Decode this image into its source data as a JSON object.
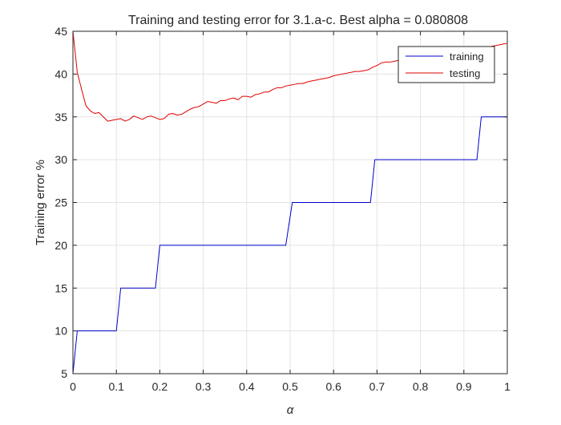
{
  "chart_data": {
    "type": "line",
    "title": "Training and testing error for 3.1.a-c. Best alpha = 0.080808",
    "xlabel": "α",
    "ylabel": "Training error %",
    "xlim": [
      0,
      1
    ],
    "ylim": [
      5,
      45
    ],
    "xticks": [
      "0",
      "0.1",
      "0.2",
      "0.3",
      "0.4",
      "0.5",
      "0.6",
      "0.7",
      "0.8",
      "0.9",
      "1"
    ],
    "yticks": [
      "5",
      "10",
      "15",
      "20",
      "25",
      "30",
      "35",
      "40",
      "45"
    ],
    "grid": true,
    "legend_position": "top-right",
    "series": [
      {
        "name": "training",
        "color": "#0000cc",
        "x": [
          0,
          0.01,
          0.01,
          0.1,
          0.11,
          0.19,
          0.2,
          0.49,
          0.505,
          0.685,
          0.695,
          0.93,
          0.94,
          1.0
        ],
        "y": [
          5,
          10,
          10,
          10,
          15,
          15,
          20,
          20,
          25,
          25,
          30,
          30,
          35,
          35
        ]
      },
      {
        "name": "testing",
        "color": "#e00000",
        "x": [
          0,
          0.01,
          0.02,
          0.03,
          0.04,
          0.05,
          0.06,
          0.07,
          0.08,
          0.09,
          0.1,
          0.11,
          0.12,
          0.13,
          0.14,
          0.15,
          0.16,
          0.17,
          0.18,
          0.19,
          0.2,
          0.21,
          0.22,
          0.23,
          0.24,
          0.25,
          0.26,
          0.27,
          0.28,
          0.29,
          0.3,
          0.31,
          0.32,
          0.33,
          0.34,
          0.35,
          0.36,
          0.37,
          0.38,
          0.39,
          0.4,
          0.41,
          0.42,
          0.43,
          0.44,
          0.45,
          0.46,
          0.47,
          0.48,
          0.49,
          0.5,
          0.51,
          0.52,
          0.53,
          0.54,
          0.55,
          0.56,
          0.57,
          0.58,
          0.59,
          0.6,
          0.61,
          0.62,
          0.63,
          0.64,
          0.65,
          0.66,
          0.67,
          0.68,
          0.69,
          0.7,
          0.71,
          0.72,
          0.73,
          0.74,
          0.75,
          0.76,
          0.77,
          0.78,
          0.79,
          0.8,
          0.81,
          0.82,
          0.83,
          0.84,
          0.85,
          0.86,
          0.87,
          0.88,
          0.89,
          0.9,
          0.91,
          0.92,
          0.93,
          0.94,
          0.95,
          0.96,
          0.97,
          0.98,
          0.99,
          1.0
        ],
        "y": [
          45,
          40.2,
          38.2,
          36.3,
          35.7,
          35.4,
          35.5,
          35.0,
          34.5,
          34.6,
          34.7,
          34.8,
          34.5,
          34.7,
          35.1,
          34.9,
          34.7,
          35.0,
          35.1,
          34.9,
          34.7,
          34.8,
          35.3,
          35.4,
          35.2,
          35.3,
          35.6,
          35.9,
          36.1,
          36.2,
          36.5,
          36.8,
          36.7,
          36.6,
          36.9,
          36.9,
          37.1,
          37.2,
          37.0,
          37.4,
          37.4,
          37.3,
          37.6,
          37.7,
          37.9,
          37.9,
          38.2,
          38.4,
          38.4,
          38.6,
          38.7,
          38.8,
          38.9,
          38.9,
          39.1,
          39.2,
          39.3,
          39.4,
          39.5,
          39.6,
          39.8,
          39.9,
          40.0,
          40.1,
          40.2,
          40.3,
          40.3,
          40.4,
          40.5,
          40.8,
          41.0,
          41.3,
          41.4,
          41.4,
          41.5,
          41.6,
          41.6,
          41.7,
          41.8,
          41.9,
          41.9,
          42.0,
          42.1,
          42.2,
          42.2,
          42.3,
          42.4,
          42.5,
          42.6,
          42.7,
          42.8,
          42.8,
          42.9,
          43.0,
          43.1,
          43.2,
          43.2,
          43.3,
          43.4,
          43.5,
          43.6
        ]
      }
    ]
  }
}
